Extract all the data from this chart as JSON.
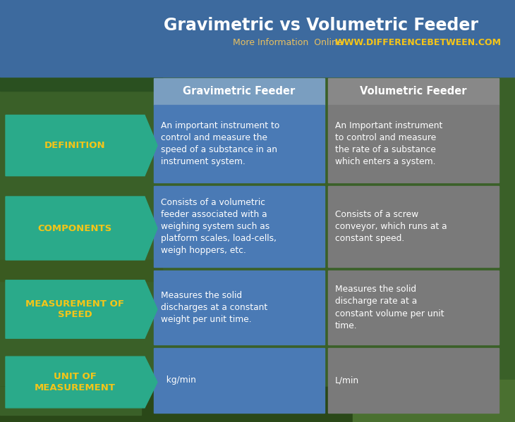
{
  "title": "Gravimetric vs Volumetric Feeder",
  "subtitle_plain": "More Information  Online",
  "subtitle_url": "WWW.DIFFERENCEBETWEEN.COM",
  "col1_header": "Gravimetric Feeder",
  "col2_header": "Volumetric Feeder",
  "rows": [
    {
      "label": "DEFINITION",
      "col1": "An important instrument to\ncontrol and measure the\nspeed of a substance in an\ninstrument system.",
      "col2": "An Important instrument\nto control and measure\nthe rate of a substance\nwhich enters a system."
    },
    {
      "label": "COMPONENTS",
      "col1": "Consists of a volumetric\nfeeder associated with a\nweighing system such as\nplatform scales, load-cells,\nweigh hoppers, etc.",
      "col2": "Consists of a screw\nconveyor, which runs at a\nconstant speed."
    },
    {
      "label": "MEASUREMENT OF\nSPEED",
      "col1": "Measures the solid\ndischarges at a constant\nweight per unit time.",
      "col2": "Measures the solid\ndischarge rate at a\nconstant volume per unit\ntime."
    },
    {
      "label": "UNIT OF\nMEASUREMENT",
      "col1": "  kg/min",
      "col2": "L/min"
    }
  ],
  "title_color": "#ffffff",
  "subtitle_plain_color": "#e8c060",
  "subtitle_url_color": "#f5c518",
  "label_color": "#f5c518",
  "cell_text_color": "#ffffff",
  "header_text_color": "#ffffff",
  "teal_color": "#2aaa8a",
  "col1_bg": "#4a7ab5",
  "col2_bg": "#7a7a7a",
  "header1_bg": "#7a9ec0",
  "header2_bg": "#888888",
  "blue_header_bg": "#3d6a9e",
  "nature_dark": "#2a5020",
  "nature_mid": "#3a7030",
  "nature_light": "#4a8040"
}
